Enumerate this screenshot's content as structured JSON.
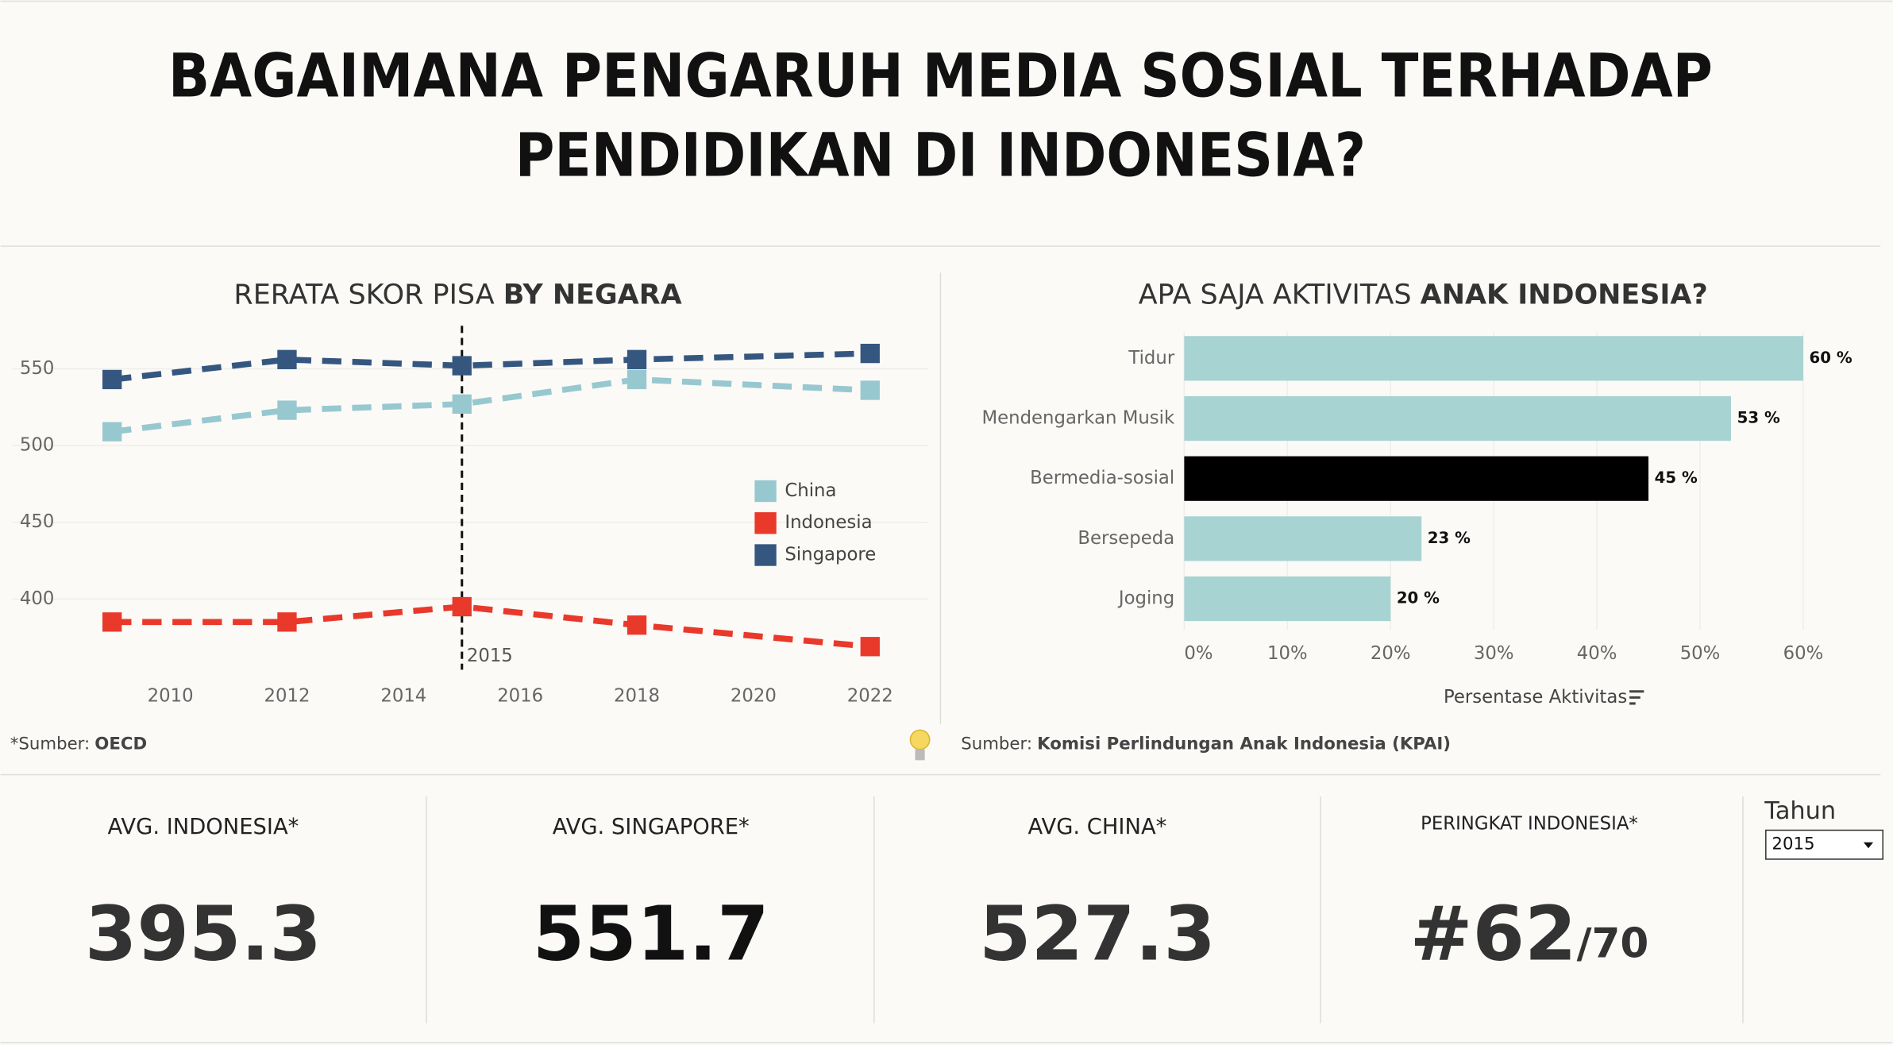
{
  "header": {
    "title_lines": [
      "BAGAIMANA PENGARUH MEDIA SOSIAL TERHADAP",
      "PENDIDIKAN DI INDONESIA?"
    ]
  },
  "chart_data": [
    {
      "type": "line",
      "title": "RERATA SKOR PISA ",
      "title_bold": "BY NEGARA",
      "x": [
        2009,
        2012,
        2015,
        2018,
        2022
      ],
      "series": [
        {
          "name": "China",
          "color": "#98c8cf",
          "values": [
            509,
            523,
            527,
            543,
            536
          ]
        },
        {
          "name": "Indonesia",
          "color": "#e8392b",
          "values": [
            385,
            385,
            395,
            383,
            369
          ]
        },
        {
          "name": "Singapore",
          "color": "#35577f",
          "values": [
            543,
            556,
            552,
            556,
            560
          ]
        }
      ],
      "xlim": [
        2008.7,
        2023
      ],
      "xticks": [
        2010,
        2012,
        2014,
        2016,
        2018,
        2020,
        2022
      ],
      "ylim": [
        350,
        578
      ],
      "yticks": [
        400,
        450,
        500,
        550
      ],
      "grid": true,
      "reference_line": {
        "x": 2015,
        "label": "2015"
      },
      "source_label": "*Sumber:",
      "source": "OECD"
    },
    {
      "type": "hbar",
      "title": "APA SAJA AKTIVITAS ",
      "title_bold": "ANAK INDONESIA?",
      "categories": [
        "Tidur",
        "Mendengarkan Musik",
        "Bermedia-sosial",
        "Bersepeda",
        "Joging"
      ],
      "values": [
        60,
        53,
        45,
        23,
        20
      ],
      "value_labels": [
        "60 %",
        "53 %",
        "45 %",
        "23 %",
        "20 %"
      ],
      "colors": [
        "#a8d3d3",
        "#a8d3d3",
        "#000000",
        "#a8d3d3",
        "#a8d3d3"
      ],
      "xlim": [
        0,
        60
      ],
      "xticks": [
        {
          "value": 0,
          "label": "0%"
        },
        {
          "value": 10,
          "label": "10%"
        },
        {
          "value": 20,
          "label": "20%"
        },
        {
          "value": 30,
          "label": "30%"
        },
        {
          "value": 40,
          "label": "40%"
        },
        {
          "value": 50,
          "label": "50%"
        },
        {
          "value": 60,
          "label": "60%"
        }
      ],
      "x_label": "Persentase Aktivitas",
      "grid": true,
      "source_label": "Sumber:",
      "source": "Komisi Perlindungan Anak Indonesia (KPAI)"
    }
  ],
  "kpis": [
    {
      "label": "AVG. INDONESIA*",
      "value": "395.3"
    },
    {
      "label": "AVG. SINGAPORE*",
      "value": "551.7"
    },
    {
      "label": "AVG. CHINA*",
      "value": "527.3"
    },
    {
      "label": "PERINGKAT INDONESIA*",
      "value": "#62",
      "suffix": "/70"
    }
  ],
  "filter": {
    "label": "Tahun",
    "value": "2015"
  }
}
